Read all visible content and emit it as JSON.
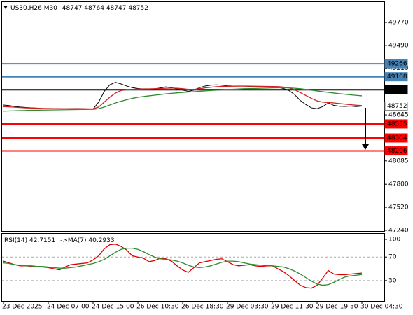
{
  "chart_data": [
    {
      "type": "line",
      "symbol": "US30,H26,M30",
      "ohlc": [
        48747,
        48764,
        48747,
        48752
      ],
      "ylim": [
        47231,
        50017
      ],
      "yticks": [
        49770,
        49490,
        49210,
        48645,
        48085,
        47800,
        47520,
        47240
      ],
      "levels": [
        {
          "value": 49266,
          "color": "#4682b4"
        },
        {
          "value": 49108,
          "color": "#4682b4"
        },
        {
          "value": 48950,
          "color": "#000000"
        },
        {
          "value": 48752,
          "color": "#c0c0c0"
        },
        {
          "value": 48535,
          "color": "#ff0000"
        },
        {
          "value": 48364,
          "color": "#ff0000"
        },
        {
          "value": 48206,
          "color": "#ff0000"
        }
      ],
      "series": [
        {
          "color": "#000000",
          "values": [
            48765,
            48758,
            48748,
            48740,
            48735,
            48730,
            48727,
            48722,
            48722,
            48720,
            48720,
            48718,
            48720,
            48722,
            48720,
            48718,
            48715,
            48800,
            48930,
            49010,
            49040,
            49020,
            48995,
            48975,
            48965,
            48960,
            48955,
            48960,
            48972,
            48985,
            48975,
            48960,
            48945,
            48930,
            48945,
            48975,
            48995,
            49005,
            49010,
            49005,
            48998,
            48995,
            48995,
            48995,
            48990,
            48988,
            48986,
            48986,
            48985,
            48980,
            48965,
            48940,
            48890,
            48820,
            48770,
            48730,
            48720,
            48745,
            48790,
            48760,
            48750,
            48748,
            48752,
            48745,
            48752
          ]
        },
        {
          "color": "#d02020",
          "values": [
            48745,
            48742,
            48738,
            48734,
            48730,
            48727,
            48725,
            48723,
            48722,
            48721,
            48720,
            48720,
            48720,
            48720,
            48720,
            48719,
            48718,
            48740,
            48800,
            48860,
            48910,
            48940,
            48950,
            48955,
            48958,
            48960,
            48960,
            48962,
            48965,
            48968,
            48970,
            48968,
            48962,
            48955,
            48955,
            48962,
            48972,
            48980,
            48987,
            48990,
            48992,
            48993,
            48994,
            48994,
            48993,
            48992,
            48991,
            48990,
            48989,
            48988,
            48983,
            48972,
            48950,
            48915,
            48880,
            48845,
            48815,
            48800,
            48795,
            48790,
            48782,
            48775,
            48768,
            48762,
            48758
          ]
        },
        {
          "color": "#2e8b2e",
          "values": [
            48690,
            48692,
            48694,
            48696,
            48698,
            48700,
            48702,
            48703,
            48704,
            48705,
            48706,
            48707,
            48708,
            48709,
            48710,
            48711,
            48712,
            48720,
            48740,
            48765,
            48790,
            48810,
            48828,
            48845,
            48858,
            48868,
            48876,
            48884,
            48892,
            48900,
            48906,
            48912,
            48917,
            48922,
            48926,
            48931,
            48936,
            48941,
            48945,
            48949,
            48953,
            48956,
            48959,
            48962,
            48964,
            48966,
            48968,
            48970,
            48972,
            48973,
            48973,
            48972,
            48968,
            48962,
            48954,
            48945,
            48935,
            48926,
            48918,
            48910,
            48902,
            48895,
            48888,
            48882,
            48876
          ]
        }
      ]
    },
    {
      "type": "line",
      "categories": [
        "23 Dec 2025",
        null,
        null,
        null,
        null,
        null,
        null,
        null,
        "24 Dec 07:00",
        null,
        null,
        null,
        null,
        null,
        null,
        null,
        "24 Dec 15:00",
        null,
        null,
        null,
        null,
        null,
        null,
        null,
        "26 Dec 10:30",
        null,
        null,
        null,
        null,
        null,
        null,
        null,
        "26 Dec 18:30",
        null,
        null,
        null,
        null,
        null,
        null,
        null,
        "29 Dec 03:30",
        null,
        null,
        null,
        null,
        null,
        null,
        null,
        "29 Dec 11:30",
        null,
        null,
        null,
        null,
        null,
        null,
        null,
        "29 Dec 19:30",
        null,
        null,
        null,
        null,
        null,
        null,
        null,
        "30 Dec 04:30"
      ],
      "ylim": [
        -4.7,
        110.7
      ],
      "yticks": [
        100,
        70,
        30
      ],
      "grid_lines": [
        70,
        30
      ],
      "series": [
        {
          "name": "RSI(14)",
          "color": "#e00000",
          "values": [
            63,
            60,
            57,
            55,
            55,
            54,
            54,
            53,
            52,
            50,
            48,
            53,
            57,
            58,
            59,
            60,
            65,
            72,
            84,
            91,
            92,
            88,
            82,
            72,
            70,
            68,
            62,
            64,
            68,
            67,
            63,
            55,
            48,
            44,
            52,
            60,
            62,
            64,
            66,
            67,
            62,
            57,
            55,
            56,
            57,
            55,
            54,
            55,
            55,
            50,
            45,
            38,
            30,
            22,
            18,
            17,
            22,
            34,
            47,
            41,
            40,
            40,
            41,
            42,
            42.7151
          ]
        },
        {
          "name": "->MA(7)",
          "color": "#2e8b2e",
          "values": [
            60,
            59,
            57,
            56,
            55,
            55,
            54,
            54,
            53,
            52,
            51,
            51,
            52,
            53,
            55,
            57,
            59,
            62,
            66,
            72,
            78,
            83,
            85,
            85,
            83,
            79,
            74,
            70,
            67,
            66,
            65,
            63,
            60,
            56,
            53,
            52,
            53,
            55,
            58,
            61,
            63,
            63,
            62,
            60,
            58,
            57,
            56,
            56,
            55,
            54,
            53,
            50,
            46,
            41,
            35,
            29,
            24,
            22,
            23,
            27,
            32,
            36,
            38,
            39,
            40.2933
          ]
        }
      ]
    }
  ]
}
